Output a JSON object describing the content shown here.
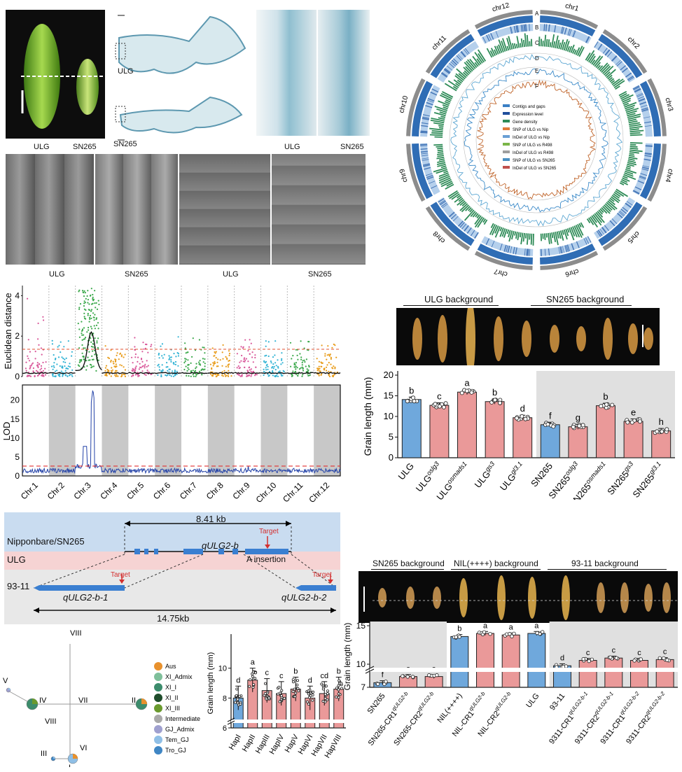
{
  "panel_a": {
    "grain_labels": [
      "ULG",
      "SN265"
    ],
    "section_labels": [
      "ULG",
      "SN265"
    ],
    "zoom_labels": [
      "ULG",
      "SN265"
    ],
    "sem_labels": [
      "ULG",
      "SN265",
      "ULG",
      "SN265"
    ]
  },
  "circos": {
    "chromosomes": [
      "chr1",
      "chr2",
      "chr3",
      "chr4",
      "chr5",
      "chr6",
      "chr7",
      "chr8",
      "chr9",
      "chr10",
      "chr11",
      "chr12"
    ],
    "track_letters": [
      "A",
      "B",
      "C",
      "D",
      "E",
      "F"
    ],
    "legend": [
      {
        "label": "Contigs and gaps",
        "color": "#3b7fc4"
      },
      {
        "label": "Expression level",
        "color": "#1f4e9c"
      },
      {
        "label": "Gene density",
        "color": "#2e8b57"
      },
      {
        "label": "SNP of ULG vs Nip",
        "color": "#e07b39"
      },
      {
        "label": "InDel of ULG vs Nip",
        "color": "#6a9fd4"
      },
      {
        "label": "SNP of ULG vs R498",
        "color": "#7ab648"
      },
      {
        "label": "InDel of ULG vs R498",
        "color": "#9e9e9e"
      },
      {
        "label": "SNP of ULG vs SN265",
        "color": "#4a90c2"
      },
      {
        "label": "InDel of ULG vs SN265",
        "color": "#c0504d"
      }
    ]
  },
  "manhattan": {
    "ylabel": "Euclidean distance",
    "yticks": [
      "0",
      "2",
      "4"
    ],
    "colors": [
      "#d9589a",
      "#31b3d4",
      "#3aa84a",
      "#e89c1a"
    ]
  },
  "lod": {
    "ylabel": "LOD",
    "yticks": [
      "0",
      "5",
      "10",
      "15",
      "20"
    ],
    "chromosomes": [
      "Chr.1",
      "Chr.2",
      "Chr.3",
      "Chr.4",
      "Chr.5",
      "Chr.6",
      "Chr.7",
      "Chr.8",
      "Chr.9",
      "Chr.10",
      "Chr.11",
      "Chr.12"
    ]
  },
  "grain_photo_1": {
    "header_left": "ULG background",
    "header_right": "SN265 background"
  },
  "chart_data": [
    {
      "type": "bar",
      "ylabel": "Grain length (mm)",
      "ylim": [
        0,
        20
      ],
      "yticks": [
        0,
        5,
        10,
        15,
        20
      ],
      "categories": [
        "ULG",
        "ULGoslg3",
        "ULGosmads1",
        "ULGgs3",
        "ULGgl3.1",
        "SN265",
        "SN265oslg3",
        "SN265osmads1",
        "SN265gs3",
        "SN265gl3.1"
      ],
      "category_labels": [
        {
          "base": "ULG",
          "sup": ""
        },
        {
          "base": "ULG",
          "sup": "oslg3"
        },
        {
          "base": "ULG",
          "sup": "osmads1"
        },
        {
          "base": "ULG",
          "sup": "gs3"
        },
        {
          "base": "ULG",
          "sup": "gl3.1"
        },
        {
          "base": "SN265",
          "sup": ""
        },
        {
          "base": "SN265",
          "sup": "oslg3"
        },
        {
          "base": "SN265",
          "sup": "osmads1"
        },
        {
          "base": "SN265",
          "sup": "gs3"
        },
        {
          "base": "SN265",
          "sup": "gl3.1"
        }
      ],
      "values": [
        14.1,
        12.7,
        15.9,
        13.6,
        9.7,
        8.0,
        7.5,
        12.6,
        8.8,
        6.5
      ],
      "letters": [
        "b",
        "c",
        "a",
        "b",
        "d",
        "f",
        "g",
        "b",
        "e",
        "h"
      ],
      "colors": [
        "#6fa8dc",
        "#ea9999",
        "#ea9999",
        "#ea9999",
        "#ea9999",
        "#6fa8dc",
        "#ea9999",
        "#ea9999",
        "#ea9999",
        "#ea9999"
      ]
    },
    {
      "type": "bar",
      "ylabel": "Grain length (mm)",
      "ylim": [
        7,
        15
      ],
      "yticks": [
        7,
        10,
        15
      ],
      "categories": [
        "SN265",
        "SN265-CR1qULG2-b",
        "SN265-CR2qULG2-b",
        "NIL(++++)",
        "NIL-CR1qULG2-b",
        "NIL-CR2qULG2-b",
        "ULG",
        "93-11",
        "9311-CR1qULG2-b-1",
        "9311-CR2qULG2-b-1",
        "9311-CR1qULG2-b-2",
        "9311-CR2qULG2-b-2"
      ],
      "category_labels": [
        {
          "base": "SN265",
          "sup": ""
        },
        {
          "base": "SN265-CR1",
          "sup": "qULG2-b"
        },
        {
          "base": "SN265-CR2",
          "sup": "qULG2-b"
        },
        {
          "base": "NIL(++++)",
          "sup": ""
        },
        {
          "base": "NIL-CR1",
          "sup": "qULG2-b"
        },
        {
          "base": "NIL-CR2",
          "sup": "qULG2-b"
        },
        {
          "base": "ULG",
          "sup": ""
        },
        {
          "base": "93-11",
          "sup": ""
        },
        {
          "base": "9311-CR1",
          "sup": "qULG2-b-1"
        },
        {
          "base": "9311-CR2",
          "sup": "qULG2-b-1"
        },
        {
          "base": "9311-CR1",
          "sup": "qULG2-b-2"
        },
        {
          "base": "9311-CR2",
          "sup": "qULG2-b-2"
        }
      ],
      "values": [
        7.6,
        8.4,
        8.4,
        13.6,
        14.0,
        13.8,
        14.0,
        9.8,
        10.5,
        10.8,
        10.5,
        10.6
      ],
      "letters": [
        "f",
        "e",
        "e",
        "b",
        "a",
        "a",
        "a",
        "d",
        "c",
        "c",
        "c",
        "c"
      ],
      "colors": [
        "#6fa8dc",
        "#ea9999",
        "#ea9999",
        "#6fa8dc",
        "#ea9999",
        "#ea9999",
        "#6fa8dc",
        "#6fa8dc",
        "#ea9999",
        "#ea9999",
        "#ea9999",
        "#ea9999"
      ]
    },
    {
      "type": "bar",
      "ylabel": "Grain length (mm)",
      "ylim": [
        6,
        12
      ],
      "yticks": [
        6,
        8,
        10
      ],
      "categories": [
        "HapI",
        "HapII",
        "HapIII",
        "HapIV",
        "HapV",
        "HapVI",
        "HapVII",
        "HapVIII"
      ],
      "values": [
        8.0,
        9.2,
        8.5,
        8.3,
        8.6,
        8.0,
        8.3,
        8.6
      ],
      "letters": [
        "d",
        "a",
        "c",
        "c",
        "b",
        "d",
        "cd",
        "b"
      ],
      "colors": [
        "#6fa8dc",
        "#ea9999",
        "#ea9999",
        "#ea9999",
        "#ea9999",
        "#ea9999",
        "#ea9999",
        "#ea9999"
      ]
    }
  ],
  "gene_model": {
    "top_label": "Nipponbare/SN265",
    "mid_label": "ULG",
    "bottom_label": "93-11",
    "size_top": "8.41 kb",
    "size_bottom": "14.75kb",
    "gene_name": "qULG2-b",
    "gene_b1": "qULG2-b-1",
    "gene_b2": "qULG2-b-2",
    "target": "Target",
    "insertion": "A insertion"
  },
  "photo_2": {
    "header_1": "SN265 background",
    "header_2": "NIL(++++) background",
    "header_3": "93-11 background"
  },
  "network": {
    "roman": [
      "VIII",
      "V",
      "IV",
      "VII",
      "II",
      "VIII",
      "III",
      "VI",
      "I"
    ],
    "legend": [
      {
        "label": "Aus",
        "color": "#e8912d"
      },
      {
        "label": "XI_Admix",
        "color": "#7fbf9a"
      },
      {
        "label": "XI_I",
        "color": "#3c8c6c"
      },
      {
        "label": "XI_II",
        "color": "#1f4d2c"
      },
      {
        "label": "XI_III",
        "color": "#6a9a2e"
      },
      {
        "label": "Intermediate",
        "color": "#a9a9a9"
      },
      {
        "label": "GJ_Admix",
        "color": "#9fa0cf"
      },
      {
        "label": "Tem_GJ",
        "color": "#8fbfe6"
      },
      {
        "label": "Tro_GJ",
        "color": "#3f86c4"
      }
    ]
  }
}
